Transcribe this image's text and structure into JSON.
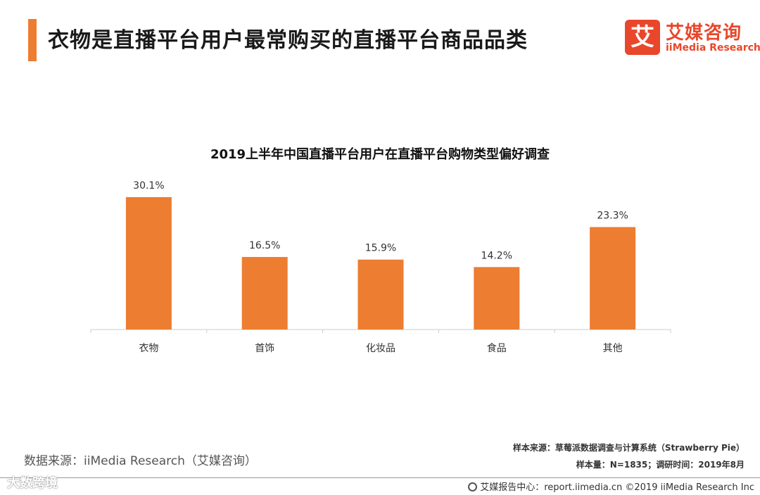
{
  "header": {
    "title": "衣物是直播平台用户最常购买的直播平台商品品类"
  },
  "logo": {
    "mark": "艾",
    "name_cn": "艾媒咨询",
    "name_en": "iiMedia Research"
  },
  "chart_data": {
    "type": "bar",
    "title": "2019上半年中国直播平台用户在直播平台购物类型偏好调查",
    "categories": [
      "衣物",
      "首饰",
      "化妆品",
      "食品",
      "其他"
    ],
    "values": [
      30.1,
      16.5,
      15.9,
      14.2,
      23.3
    ],
    "value_labels": [
      "30.1%",
      "16.5%",
      "15.9%",
      "14.2%",
      "23.3%"
    ],
    "unit": "%",
    "xlabel": "",
    "ylabel": "",
    "ylim": [
      0,
      30.1
    ],
    "grid": false,
    "legend": "none",
    "bar_color": "#ed7d31"
  },
  "source": "数据来源：iiMedia Research（艾媒咨询）",
  "sample": {
    "line1": "样本来源：草莓派数据调查与计算系统（Strawberry Pie）",
    "line2": "样本量：N=1835；调研时间：2019年8月"
  },
  "footer": {
    "text": "艾媒报告中心：report.iimedia.cn ©2019 iiMedia Research Inc"
  },
  "watermark": "大数跨境",
  "colors": {
    "accent": "#ed7d31",
    "logo_red": "#e8472b",
    "axis": "#cccccc"
  }
}
